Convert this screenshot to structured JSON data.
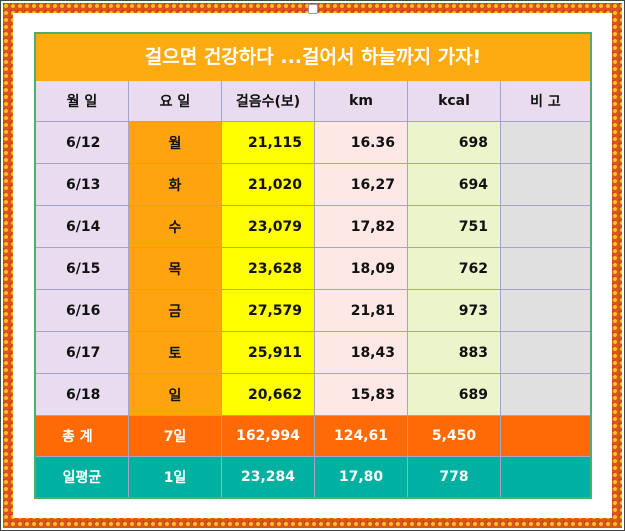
{
  "title": "걸으면 건강하다 ...걸어서 하늘까지 가자!",
  "headers": [
    "월 일",
    "요 일",
    "걸음수(보)",
    "km",
    "kcal",
    "비 고"
  ],
  "rows": [
    {
      "date": "6/12",
      "day": "월",
      "steps": "21,115",
      "km": "16.36",
      "kcal": "698",
      "note": ""
    },
    {
      "date": "6/13",
      "day": "화",
      "steps": "21,020",
      "km": "16,27",
      "kcal": "694",
      "note": ""
    },
    {
      "date": "6/14",
      "day": "수",
      "steps": "23,079",
      "km": "17,82",
      "kcal": "751",
      "note": ""
    },
    {
      "date": "6/15",
      "day": "목",
      "steps": "23,628",
      "km": "18,09",
      "kcal": "762",
      "note": ""
    },
    {
      "date": "6/16",
      "day": "금",
      "steps": "27,579",
      "km": "21,81",
      "kcal": "973",
      "note": ""
    },
    {
      "date": "6/17",
      "day": "토",
      "steps": "25,911",
      "km": "18,43",
      "kcal": "883",
      "note": ""
    },
    {
      "date": "6/18",
      "day": "일",
      "steps": "20,662",
      "km": "15,83",
      "kcal": "689",
      "note": ""
    }
  ],
  "total": {
    "label": "총 계",
    "days": "7일",
    "steps": "162,994",
    "km": "124,61",
    "kcal": "5,450",
    "note": ""
  },
  "average": {
    "label": "일평균",
    "days": "1일",
    "steps": "23,284",
    "km": "17,80",
    "kcal": "778",
    "note": ""
  },
  "colors": {
    "title_bg": "#fdab11",
    "header_bg": "#e8dcee",
    "weekday_bg": "#fda40e",
    "steps_bg": "#ffff00",
    "km_bg": "#fde8e6",
    "kcal_bg": "#ecf4cc",
    "note_bg": "#e0e0e0",
    "total_bg": "#fe6a05",
    "average_bg": "#00b0a0",
    "border_pattern": "#d9541e"
  }
}
